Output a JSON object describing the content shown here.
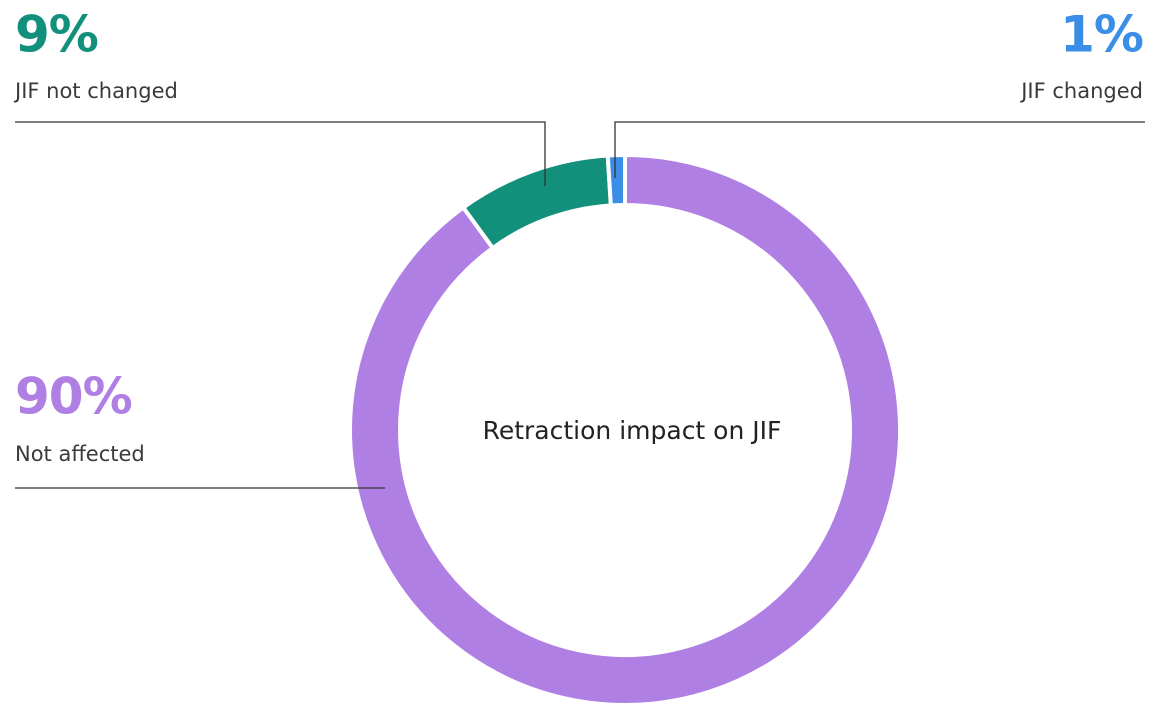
{
  "chart_data": {
    "type": "donut",
    "title": "Retraction impact on JIF",
    "categories": [
      "Not affected",
      "JIF not changed",
      "JIF changed"
    ],
    "values": [
      90,
      9,
      1
    ],
    "value_labels": [
      "90%",
      "9%",
      "1%"
    ],
    "colors": [
      "#b07fe3",
      "#13907c",
      "#3a8ee6"
    ]
  }
}
